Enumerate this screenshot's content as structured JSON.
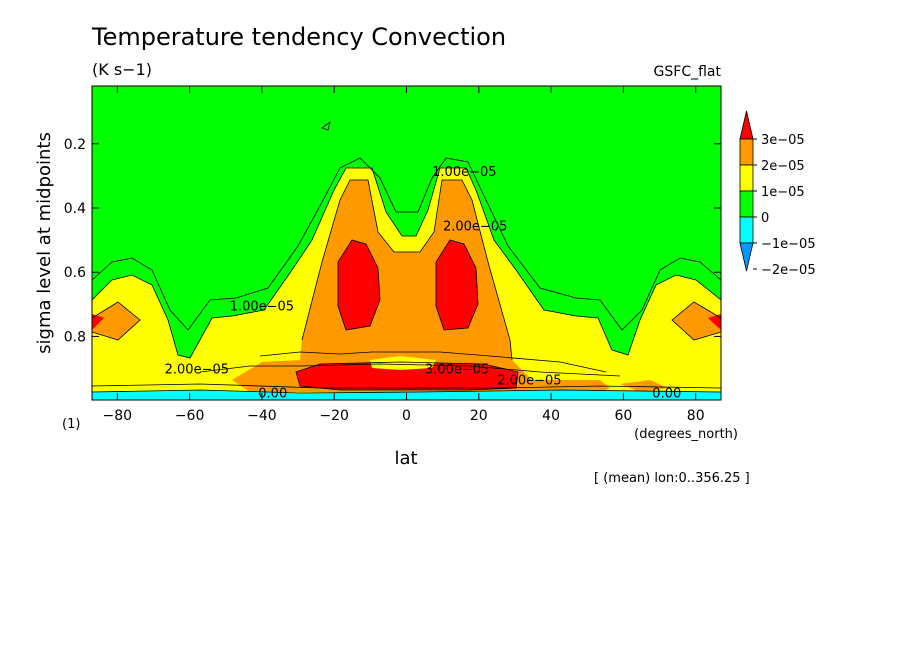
{
  "chart_data": {
    "type": "heatmap",
    "title": "Temperature tendency Convection",
    "units": "(K s−1)",
    "source_label": "GSFC_flat",
    "xlabel": "lat",
    "xunits": "(degrees_north)",
    "ylabel": "sigma level at midpoints",
    "ylabel_units": "(1)",
    "footnote": "[ (mean) lon:0..356.25 ]",
    "xlim": [
      -87,
      87
    ],
    "ylim": [
      0.998,
      0.02
    ],
    "xticks": [
      -80,
      -60,
      -40,
      -20,
      0,
      20,
      40,
      60,
      80
    ],
    "xtick_labels": [
      "−80",
      "−60",
      "−40",
      "−20",
      "0",
      "20",
      "40",
      "60",
      "80"
    ],
    "yticks": [
      0.2,
      0.4,
      0.6,
      0.8
    ],
    "ytick_labels": [
      "0.2",
      "0.4",
      "0.6",
      "0.8"
    ],
    "colorbar": {
      "levels": [
        "3e−05",
        "2e−05",
        "1e−05",
        "0",
        "−1e−05",
        "−2e−05"
      ],
      "colors": [
        "#ff0000",
        "#ff9900",
        "#ffff00",
        "#00ff00",
        "#00ffff",
        "#0099ff"
      ]
    },
    "contour_labels": [
      {
        "text": "1.00e−05",
        "lat": -40,
        "sigma": 0.72
      },
      {
        "text": "2.00e−05",
        "lat": -58,
        "sigma": 0.915
      },
      {
        "text": "3.00e−05",
        "lat": 14,
        "sigma": 0.915
      },
      {
        "text": "2.00e−05",
        "lat": 34,
        "sigma": 0.95
      },
      {
        "text": "1.00e−05",
        "lat": 16,
        "sigma": 0.3
      },
      {
        "text": "2.00e−05",
        "lat": 19,
        "sigma": 0.47
      },
      {
        "text": "0.00",
        "lat": -37,
        "sigma": 0.99
      },
      {
        "text": "0.00",
        "lat": 72,
        "sigma": 0.99
      }
    ]
  }
}
